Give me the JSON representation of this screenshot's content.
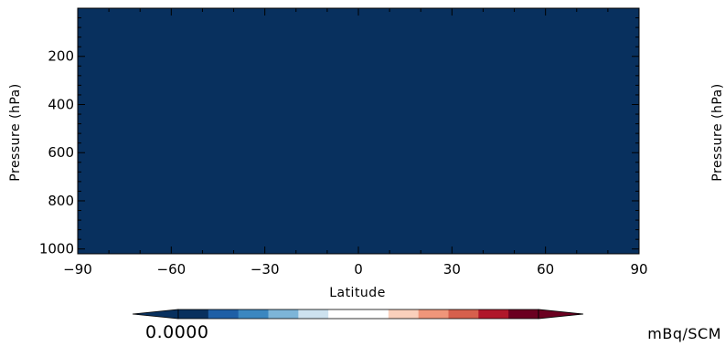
{
  "chart_data": {
    "type": "heatmap",
    "xlabel": "Latitude",
    "ylabel": "Pressure (hPa)",
    "ylabel_right": "Pressure (hPa)",
    "xlim": [
      -90,
      90
    ],
    "ylim": [
      1020,
      0
    ],
    "y_axis_inverted": true,
    "x_ticks": [
      -90,
      -60,
      -30,
      0,
      30,
      60,
      90
    ],
    "x_tick_labels": [
      "−90",
      "−60",
      "−30",
      "0",
      "30",
      "60",
      "90"
    ],
    "y_ticks": [
      200,
      400,
      600,
      800,
      1000
    ],
    "y_tick_labels": [
      "200",
      "400",
      "600",
      "800",
      "1000"
    ],
    "field_value": 0.0,
    "field_color": "#08305E",
    "colorbar": {
      "orientation": "horizontal",
      "extend": "both",
      "colors": [
        "#08305E",
        "#08305E",
        "#1E5FA6",
        "#3B87C0",
        "#7DB5D8",
        "#CDE2EF",
        "#FFFFFF",
        "#FFFFFF",
        "#FAD0BC",
        "#F0967A",
        "#D6604D",
        "#B0172A",
        "#6B0020",
        "#6B0020"
      ],
      "label_min": "0.0000",
      "unit": "mBq/SCM"
    }
  }
}
